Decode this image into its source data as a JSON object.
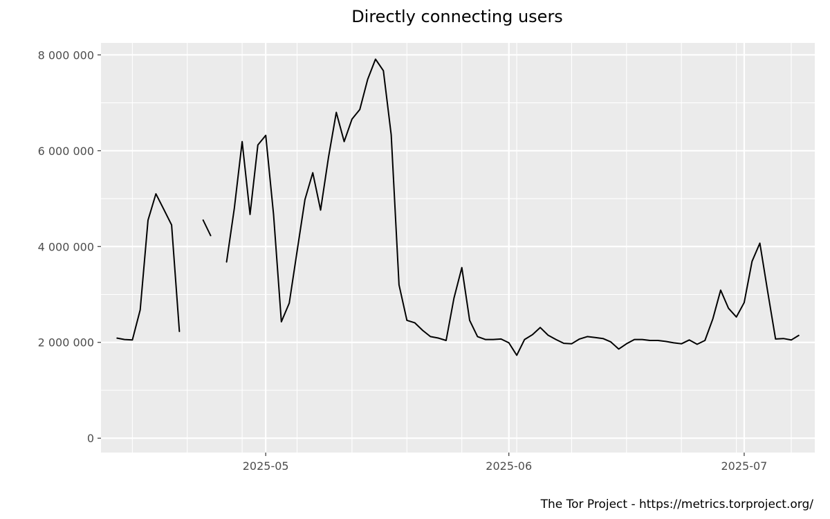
{
  "chart_data": {
    "type": "line",
    "title": "Directly connecting users",
    "xlabel": "",
    "ylabel": "",
    "caption": "The Tor Project - https://metrics.torproject.org/",
    "x_start": "2025-04-10",
    "x_end": "2025-07-10",
    "ylim": [
      -300000,
      8250000
    ],
    "y_ticks": [
      0,
      2000000,
      4000000,
      6000000,
      8000000
    ],
    "y_tick_labels": [
      "0",
      "2 000 000",
      "4 000 000",
      "6 000 000",
      "8 000 000"
    ],
    "x_ticks": [
      "2025-05-01",
      "2025-06-01",
      "2025-07-01"
    ],
    "x_tick_labels": [
      "2025-05",
      "2025-06",
      "2025-07"
    ],
    "grid": true,
    "line_color": "#000000",
    "panel_color": "#ebebeb",
    "series": [
      {
        "points": [
          [
            "2025-04-12",
            2090000
          ],
          [
            "2025-04-13",
            2060000
          ],
          [
            "2025-04-14",
            2050000
          ],
          [
            "2025-04-15",
            2680000
          ],
          [
            "2025-04-16",
            4550000
          ],
          [
            "2025-04-17",
            5100000
          ],
          [
            "2025-04-18",
            4780000
          ],
          [
            "2025-04-19",
            4450000
          ],
          [
            "2025-04-20",
            2220000
          ],
          [
            "2025-04-21",
            null
          ],
          [
            "2025-04-22",
            null
          ],
          [
            "2025-04-23",
            4560000
          ],
          [
            "2025-04-24",
            4220000
          ],
          [
            "2025-04-25",
            null
          ],
          [
            "2025-04-26",
            3670000
          ],
          [
            "2025-04-27",
            4800000
          ],
          [
            "2025-04-28",
            6190000
          ],
          [
            "2025-04-29",
            4670000
          ],
          [
            "2025-04-30",
            6120000
          ],
          [
            "2025-05-01",
            6320000
          ],
          [
            "2025-05-02",
            4670000
          ],
          [
            "2025-05-03",
            2430000
          ],
          [
            "2025-05-04",
            2820000
          ],
          [
            "2025-05-05",
            3900000
          ],
          [
            "2025-05-06",
            4980000
          ],
          [
            "2025-05-07",
            5540000
          ],
          [
            "2025-05-08",
            4760000
          ],
          [
            "2025-05-09",
            5860000
          ],
          [
            "2025-05-10",
            6800000
          ],
          [
            "2025-05-11",
            6190000
          ],
          [
            "2025-05-12",
            6660000
          ],
          [
            "2025-05-13",
            6860000
          ],
          [
            "2025-05-14",
            7490000
          ],
          [
            "2025-05-15",
            7910000
          ],
          [
            "2025-05-16",
            7670000
          ],
          [
            "2025-05-17",
            6330000
          ],
          [
            "2025-05-18",
            3200000
          ],
          [
            "2025-05-19",
            2460000
          ],
          [
            "2025-05-20",
            2410000
          ],
          [
            "2025-05-21",
            2250000
          ],
          [
            "2025-05-22",
            2120000
          ],
          [
            "2025-05-23",
            2090000
          ],
          [
            "2025-05-24",
            2040000
          ],
          [
            "2025-05-25",
            2920000
          ],
          [
            "2025-05-26",
            3560000
          ],
          [
            "2025-05-27",
            2460000
          ],
          [
            "2025-05-28",
            2120000
          ],
          [
            "2025-05-29",
            2060000
          ],
          [
            "2025-05-30",
            2060000
          ],
          [
            "2025-05-31",
            2070000
          ],
          [
            "2025-06-01",
            1990000
          ],
          [
            "2025-06-02",
            1730000
          ],
          [
            "2025-06-03",
            2060000
          ],
          [
            "2025-06-04",
            2160000
          ],
          [
            "2025-06-05",
            2310000
          ],
          [
            "2025-06-06",
            2150000
          ],
          [
            "2025-06-07",
            2060000
          ],
          [
            "2025-06-08",
            1980000
          ],
          [
            "2025-06-09",
            1970000
          ],
          [
            "2025-06-10",
            2070000
          ],
          [
            "2025-06-11",
            2120000
          ],
          [
            "2025-06-12",
            2100000
          ],
          [
            "2025-06-13",
            2080000
          ],
          [
            "2025-06-14",
            2010000
          ],
          [
            "2025-06-15",
            1860000
          ],
          [
            "2025-06-16",
            1970000
          ],
          [
            "2025-06-17",
            2060000
          ],
          [
            "2025-06-18",
            2060000
          ],
          [
            "2025-06-19",
            2040000
          ],
          [
            "2025-06-20",
            2040000
          ],
          [
            "2025-06-21",
            2020000
          ],
          [
            "2025-06-22",
            1990000
          ],
          [
            "2025-06-23",
            1970000
          ],
          [
            "2025-06-24",
            2050000
          ],
          [
            "2025-06-25",
            1960000
          ],
          [
            "2025-06-26",
            2040000
          ],
          [
            "2025-06-27",
            2490000
          ],
          [
            "2025-06-28",
            3090000
          ],
          [
            "2025-06-29",
            2710000
          ],
          [
            "2025-06-30",
            2530000
          ],
          [
            "2025-07-01",
            2830000
          ],
          [
            "2025-07-02",
            3690000
          ],
          [
            "2025-07-03",
            4070000
          ],
          [
            "2025-07-04",
            3050000
          ],
          [
            "2025-07-05",
            2070000
          ],
          [
            "2025-07-06",
            2080000
          ],
          [
            "2025-07-07",
            2050000
          ],
          [
            "2025-07-08",
            2150000
          ]
        ]
      }
    ]
  }
}
